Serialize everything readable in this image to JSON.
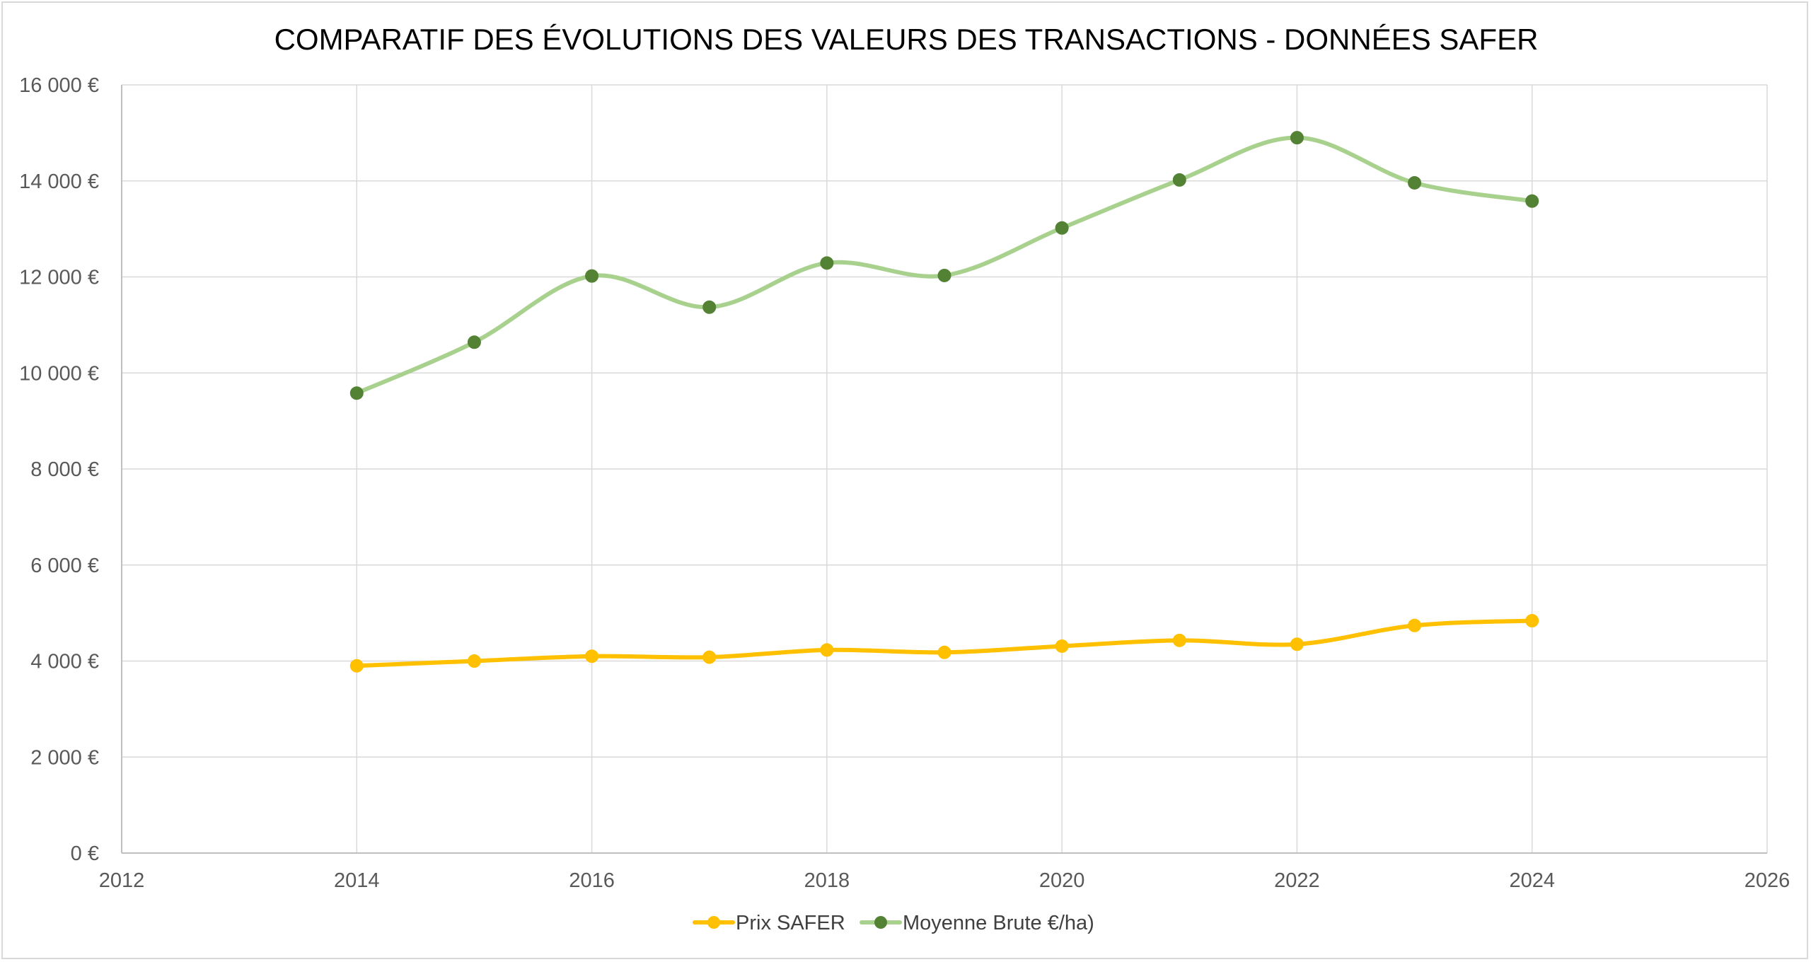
{
  "chart_data": {
    "type": "scatter",
    "title": "COMPARATIF DES ÉVOLUTIONS DES VALEURS DES TRANSACTIONS - DONNÉES SAFER",
    "xlabel": "",
    "ylabel": "",
    "xlim": [
      2012,
      2026
    ],
    "ylim": [
      0,
      16000
    ],
    "x_ticks": [
      2012,
      2014,
      2016,
      2018,
      2020,
      2022,
      2024,
      2026
    ],
    "x_tick_labels": [
      "2012",
      "2014",
      "2016",
      "2018",
      "2020",
      "2022",
      "2024",
      "2026"
    ],
    "y_ticks": [
      0,
      2000,
      4000,
      6000,
      8000,
      10000,
      12000,
      14000,
      16000
    ],
    "y_tick_labels": [
      "0 €",
      "2 000 €",
      "4 000 €",
      "6 000 €",
      "8 000 €",
      "10 000 €",
      "12 000 €",
      "14 000 €",
      "16 000 €"
    ],
    "grid": true,
    "smooth_lines": true,
    "legend_position": "bottom",
    "series": [
      {
        "name": "Prix SAFER",
        "line_color": "#ffc000",
        "marker_color": "#ffc000",
        "x": [
          2014,
          2015,
          2016,
          2017,
          2018,
          2019,
          2020,
          2021,
          2022,
          2023,
          2024
        ],
        "y": [
          3900,
          4000,
          4100,
          4080,
          4230,
          4180,
          4310,
          4430,
          4350,
          4740,
          4840
        ]
      },
      {
        "name": "Moyenne Brute €/ha)",
        "line_color": "#a9d18e",
        "marker_color": "#548235",
        "x": [
          2014,
          2015,
          2016,
          2017,
          2018,
          2019,
          2020,
          2021,
          2022,
          2023,
          2024
        ],
        "y": [
          9580,
          10640,
          12020,
          11370,
          12290,
          12030,
          13020,
          14020,
          14900,
          13960,
          13580
        ]
      }
    ]
  }
}
